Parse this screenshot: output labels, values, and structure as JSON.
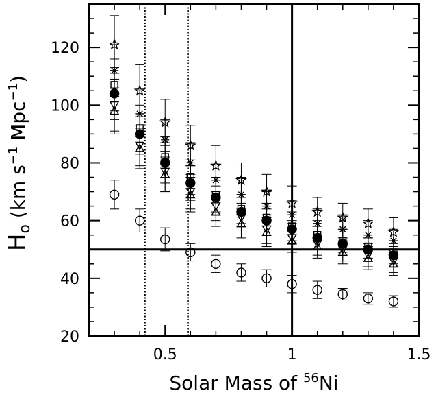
{
  "chart_data": {
    "type": "scatter",
    "title": "",
    "xlabel": {
      "text": "Solar Mass of ",
      "sup": "56",
      "tail": "Ni"
    },
    "ylabel": {
      "main": "H",
      "sub": "o",
      "units_pre": " (km s",
      "sup1": "−1",
      "units_mid": " Mpc",
      "sup2": "−1",
      "units_post": ")"
    },
    "xlim": [
      0.2,
      1.5
    ],
    "ylim": [
      20,
      135
    ],
    "xticks": [
      {
        "value": 0.5,
        "label": "0.5"
      },
      {
        "value": 1.0,
        "label": "1"
      },
      {
        "value": 1.5,
        "label": "1.5"
      }
    ],
    "yticks": [
      {
        "value": 20,
        "label": "20"
      },
      {
        "value": 40,
        "label": "40"
      },
      {
        "value": 60,
        "label": "60"
      },
      {
        "value": 80,
        "label": "80"
      },
      {
        "value": 100,
        "label": "100"
      },
      {
        "value": 120,
        "label": "120"
      }
    ],
    "reference_lines": [
      {
        "orientation": "horizontal",
        "value": 50,
        "style": "solid"
      },
      {
        "orientation": "vertical",
        "value": 1.0,
        "style": "solid"
      },
      {
        "orientation": "vertical",
        "value": 0.42,
        "style": "dotted"
      },
      {
        "orientation": "vertical",
        "value": 0.59,
        "style": "dotted"
      }
    ],
    "x": [
      0.3,
      0.4,
      0.5,
      0.6,
      0.7,
      0.8,
      0.9,
      1.0,
      1.1,
      1.2,
      1.3,
      1.4
    ],
    "series": [
      {
        "marker": "star",
        "values": [
          121,
          105,
          94,
          86,
          79,
          74,
          70,
          66,
          63,
          61,
          59,
          56
        ],
        "error": [
          10,
          9,
          8,
          7,
          7,
          6,
          6,
          6,
          5,
          5,
          5,
          5
        ]
      },
      {
        "marker": "asterisk",
        "values": [
          112,
          97,
          88,
          80,
          74,
          69,
          65,
          62,
          59,
          57,
          55,
          53
        ],
        "error": [
          9,
          8,
          7,
          7,
          6,
          6,
          5,
          5,
          5,
          5,
          5,
          4
        ]
      },
      {
        "marker": "square",
        "values": [
          107,
          92,
          82,
          75,
          69,
          64,
          61,
          58,
          55,
          53,
          51,
          49
        ],
        "error": [
          9,
          8,
          7,
          6,
          6,
          5,
          5,
          5,
          5,
          4,
          4,
          4
        ]
      },
      {
        "marker": "filled-circle",
        "values": [
          104,
          90,
          80,
          73,
          68,
          63,
          60,
          57,
          54,
          52,
          50,
          48
        ],
        "error": [
          9,
          7,
          7,
          6,
          6,
          5,
          5,
          5,
          4,
          4,
          4,
          4
        ]
      },
      {
        "marker": "triangle-down",
        "values": [
          100,
          86,
          77,
          70,
          65,
          61,
          57,
          54,
          52,
          50,
          48,
          46
        ],
        "error": [
          9,
          7,
          7,
          6,
          5,
          5,
          5,
          5,
          4,
          4,
          4,
          4
        ]
      },
      {
        "marker": "triangle-up",
        "values": [
          98,
          85,
          76,
          69,
          63,
          59,
          56,
          53,
          51,
          49,
          47,
          45
        ],
        "error": [
          8,
          7,
          6,
          6,
          5,
          5,
          5,
          4,
          4,
          4,
          4,
          4
        ]
      },
      {
        "marker": "open-circle",
        "values": [
          69,
          60,
          53.5,
          49,
          45,
          42,
          40,
          38,
          36,
          34.5,
          33,
          32
        ],
        "error": [
          5,
          4,
          4,
          3,
          3,
          3,
          3,
          3,
          3,
          2,
          2,
          2
        ]
      }
    ]
  }
}
